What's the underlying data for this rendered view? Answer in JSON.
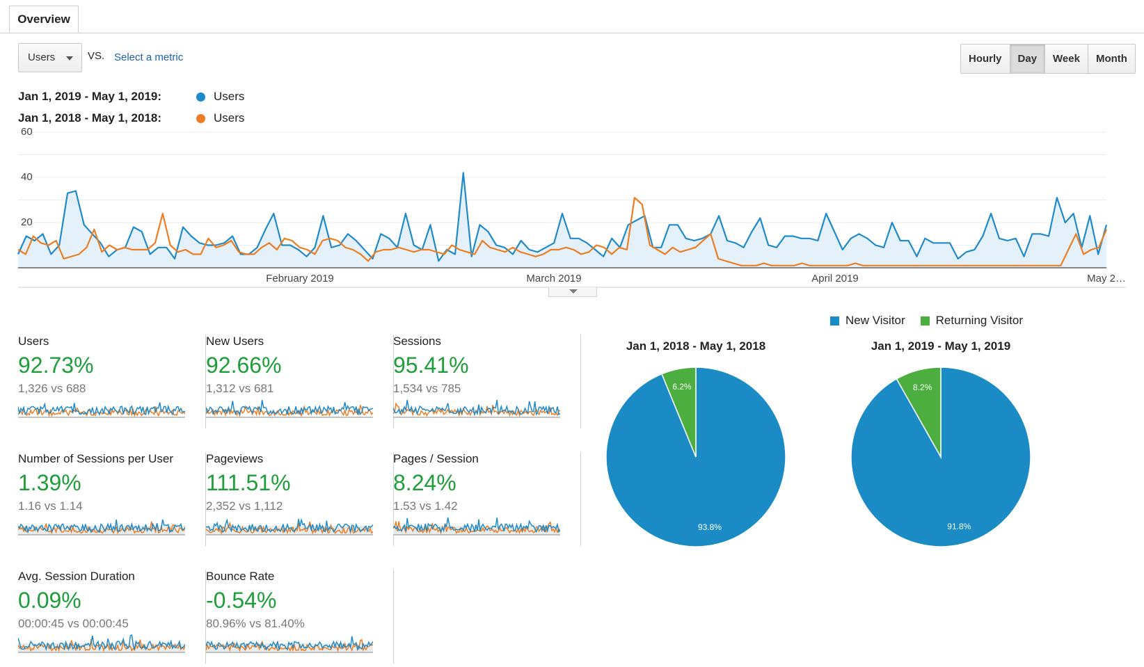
{
  "tabs": [
    {
      "label": "Overview"
    }
  ],
  "controls": {
    "metric": "Users",
    "vs": "VS.",
    "select_metric": "Select a metric",
    "granularity": [
      "Hourly",
      "Day",
      "Week",
      "Month"
    ],
    "active_granularity": "Day"
  },
  "legend": [
    {
      "range": "Jan 1, 2019 - May 1, 2019:",
      "series": "Users",
      "color": "#1f8ac9"
    },
    {
      "range": "Jan 1, 2018 - May 1, 2018:",
      "series": "Users",
      "color": "#ed7d22"
    }
  ],
  "chart_data": [
    {
      "type": "line",
      "ylim": [
        0,
        60
      ],
      "y_ticks": [
        "60",
        "40",
        "20"
      ],
      "x_labels": [
        "February 2019",
        "March 2019",
        "April 2019",
        "May 2…"
      ],
      "grid": true,
      "series": [
        {
          "name": "Users",
          "color": "#1f8ac9",
          "values": [
            6,
            14,
            12,
            15,
            6,
            10,
            33,
            34,
            19,
            15,
            11,
            5,
            8,
            9,
            18,
            16,
            6,
            9,
            9,
            4,
            18,
            14,
            11,
            10,
            10,
            11,
            14,
            6,
            6,
            9,
            17,
            24,
            10,
            10,
            8,
            5,
            9,
            23,
            9,
            10,
            15,
            12,
            8,
            4,
            15,
            13,
            9,
            24,
            10,
            8,
            19,
            3,
            8,
            6,
            42,
            5,
            19,
            16,
            10,
            9,
            6,
            12,
            8,
            7,
            9,
            11,
            24,
            13,
            13,
            11,
            8,
            5,
            13,
            9,
            19,
            21,
            23,
            9,
            9,
            19,
            19,
            13,
            12,
            13,
            15,
            23,
            12,
            11,
            9,
            16,
            22,
            10,
            9,
            14,
            14,
            13,
            13,
            12,
            24,
            16,
            8,
            13,
            15,
            13,
            10,
            9,
            20,
            12,
            12,
            5,
            13,
            11,
            11,
            11,
            4,
            7,
            8,
            14,
            24,
            13,
            12,
            13,
            5,
            15,
            15,
            14,
            31,
            20,
            24,
            9,
            23,
            6,
            19
          ]
        },
        {
          "name": "Users",
          "color": "#ed7d22",
          "values": [
            8,
            6,
            14,
            11,
            10,
            12,
            4,
            5,
            6,
            9,
            17,
            7,
            10,
            8,
            9,
            8,
            8,
            8,
            11,
            24,
            10,
            7,
            8,
            6,
            6,
            13,
            9,
            10,
            12,
            7,
            6,
            6,
            9,
            11,
            8,
            13,
            12,
            9,
            8,
            6,
            12,
            13,
            12,
            9,
            8,
            6,
            3,
            7,
            8,
            8,
            9,
            8,
            7,
            8,
            8,
            7,
            6,
            10,
            8,
            7,
            6,
            12,
            9,
            8,
            7,
            9,
            7,
            6,
            5,
            6,
            8,
            8,
            9,
            8,
            6,
            7,
            10,
            9,
            6,
            9,
            8,
            31,
            28,
            10,
            8,
            6,
            9,
            7,
            8,
            9,
            12,
            15,
            4,
            3,
            2,
            1,
            1,
            1,
            2,
            1,
            1,
            1,
            1,
            2,
            1,
            1,
            1,
            1,
            1,
            1,
            2,
            1,
            1,
            1,
            1,
            1,
            1,
            1,
            1,
            1,
            1,
            1,
            1,
            1,
            1,
            1,
            1,
            1,
            1,
            1,
            1,
            1,
            1,
            1,
            1,
            1,
            1,
            1,
            8,
            15,
            6,
            8,
            9,
            17
          ]
        }
      ]
    },
    {
      "type": "pie",
      "title": "Jan 1, 2018 - May 1, 2018",
      "slices": [
        {
          "name": "New Visitor",
          "value": 93.8,
          "label": "93.8%",
          "color": "#1a8bc4"
        },
        {
          "name": "Returning Visitor",
          "value": 6.2,
          "label": "6.2%",
          "color": "#4cae3e"
        }
      ]
    },
    {
      "type": "pie",
      "title": "Jan 1, 2019 - May 1, 2019",
      "slices": [
        {
          "name": "New Visitor",
          "value": 91.8,
          "label": "91.8%",
          "color": "#1a8bc4"
        },
        {
          "name": "Returning Visitor",
          "value": 8.2,
          "label": "8.2%",
          "color": "#4cae3e"
        }
      ]
    }
  ],
  "pie_legend": [
    {
      "label": "New Visitor",
      "color": "#1a8bc4"
    },
    {
      "label": "Returning Visitor",
      "color": "#4cae3e"
    }
  ],
  "metrics": [
    {
      "name": "users",
      "label": "Users",
      "value": "92.73%",
      "compare": "1,326 vs 688"
    },
    {
      "name": "new-users",
      "label": "New Users",
      "value": "92.66%",
      "compare": "1,312 vs 681"
    },
    {
      "name": "sessions",
      "label": "Sessions",
      "value": "95.41%",
      "compare": "1,534 vs 785"
    },
    {
      "name": "sessions-per-user",
      "label": "Number of Sessions per User",
      "value": "1.39%",
      "compare": "1.16 vs 1.14"
    },
    {
      "name": "pageviews",
      "label": "Pageviews",
      "value": "111.51%",
      "compare": "2,352 vs 1,112"
    },
    {
      "name": "pages-per-session",
      "label": "Pages / Session",
      "value": "8.24%",
      "compare": "1.53 vs 1.42"
    },
    {
      "name": "avg-session-duration",
      "label": "Avg. Session Duration",
      "value": "0.09%",
      "compare": "00:00:45 vs 00:00:45"
    },
    {
      "name": "bounce-rate",
      "label": "Bounce Rate",
      "value": "-0.54%",
      "compare": "80.96% vs 81.40%"
    }
  ]
}
